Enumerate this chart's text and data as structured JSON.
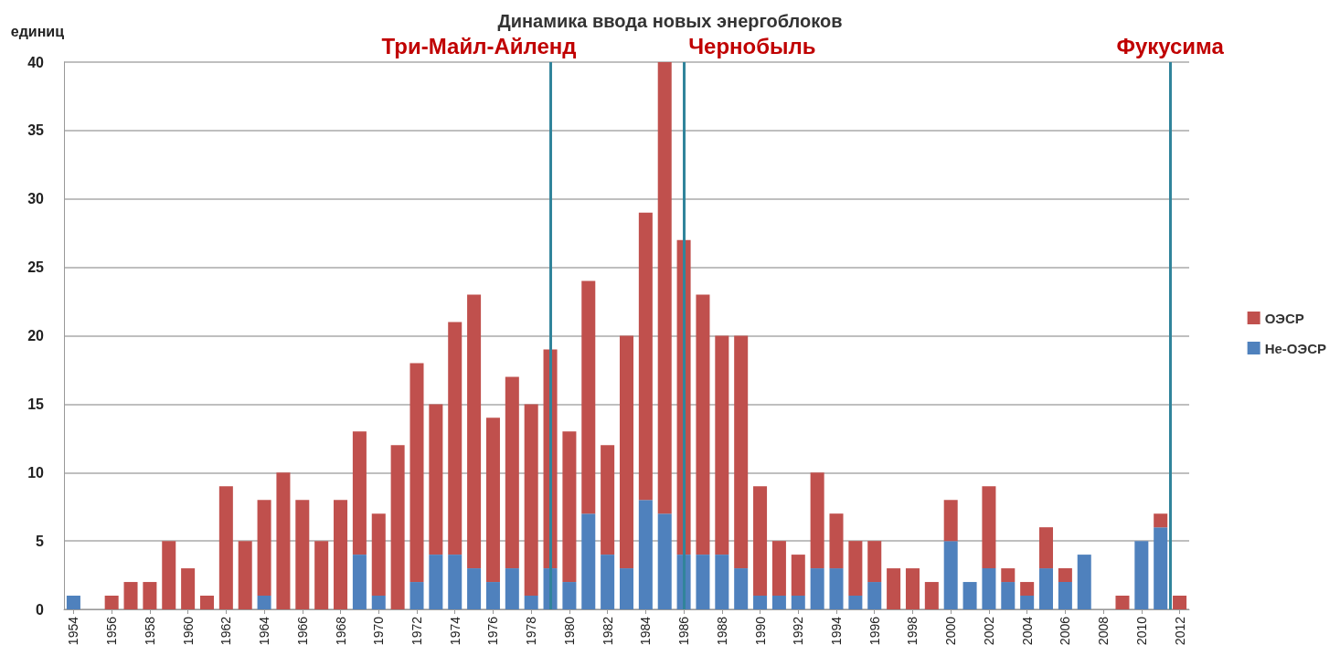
{
  "chart_data": {
    "type": "bar",
    "title": "Динамика ввода новых энергоблоков",
    "ylabel": "единиц",
    "stacked": true,
    "x": [
      1954,
      1955,
      1956,
      1957,
      1958,
      1959,
      1960,
      1961,
      1962,
      1963,
      1964,
      1965,
      1966,
      1967,
      1968,
      1969,
      1970,
      1971,
      1972,
      1973,
      1974,
      1975,
      1976,
      1977,
      1978,
      1979,
      1980,
      1981,
      1982,
      1983,
      1984,
      1985,
      1986,
      1987,
      1988,
      1989,
      1990,
      1991,
      1992,
      1993,
      1994,
      1995,
      1996,
      1997,
      1998,
      1999,
      2000,
      2001,
      2002,
      2003,
      2004,
      2005,
      2006,
      2007,
      2008,
      2009,
      2010,
      2011,
      2012
    ],
    "series": [
      {
        "name": "Не-ОЭСР",
        "color": "#4f81bd",
        "values": [
          1,
          0,
          0,
          0,
          0,
          0,
          0,
          0,
          0,
          0,
          1,
          0,
          0,
          0,
          0,
          4,
          1,
          0,
          2,
          4,
          4,
          3,
          2,
          3,
          1,
          3,
          2,
          7,
          4,
          3,
          8,
          7,
          4,
          4,
          4,
          3,
          1,
          1,
          1,
          3,
          3,
          1,
          2,
          0,
          0,
          0,
          5,
          2,
          3,
          2,
          1,
          3,
          2,
          4,
          0,
          0,
          5,
          6,
          0
        ]
      },
      {
        "name": "ОЭСР",
        "color": "#c0504d",
        "values": [
          0,
          0,
          1,
          2,
          2,
          5,
          3,
          1,
          9,
          5,
          7,
          10,
          8,
          5,
          8,
          9,
          6,
          12,
          16,
          11,
          17,
          20,
          12,
          14,
          14,
          16,
          11,
          17,
          8,
          17,
          21,
          33,
          23,
          19,
          16,
          17,
          8,
          4,
          3,
          7,
          4,
          4,
          3,
          3,
          3,
          2,
          3,
          0,
          6,
          1,
          1,
          3,
          1,
          0,
          0,
          1,
          0,
          1,
          1
        ]
      }
    ],
    "xlim": [
      1953.5,
      2012.5
    ],
    "xticks": [
      1954,
      1956,
      1958,
      1960,
      1962,
      1964,
      1966,
      1968,
      1970,
      1972,
      1974,
      1976,
      1978,
      1980,
      1982,
      1984,
      1986,
      1988,
      1990,
      1992,
      1994,
      1996,
      1998,
      2000,
      2002,
      2004,
      2006,
      2008,
      2010,
      2012
    ],
    "ylim": [
      0,
      40
    ],
    "yticks": [
      0,
      5,
      10,
      15,
      20,
      25,
      30,
      35,
      40
    ],
    "grid": "y",
    "legend": "right",
    "ref_lines": [
      {
        "axis": "x",
        "value": 1979,
        "label": "Три-Майл-Айленд",
        "color": "#31849b"
      },
      {
        "axis": "x",
        "value": 1986,
        "label": "Чернобыль",
        "color": "#31849b"
      },
      {
        "axis": "x",
        "value": 2011.5,
        "label": "Фукусима",
        "color": "#31849b"
      }
    ]
  }
}
